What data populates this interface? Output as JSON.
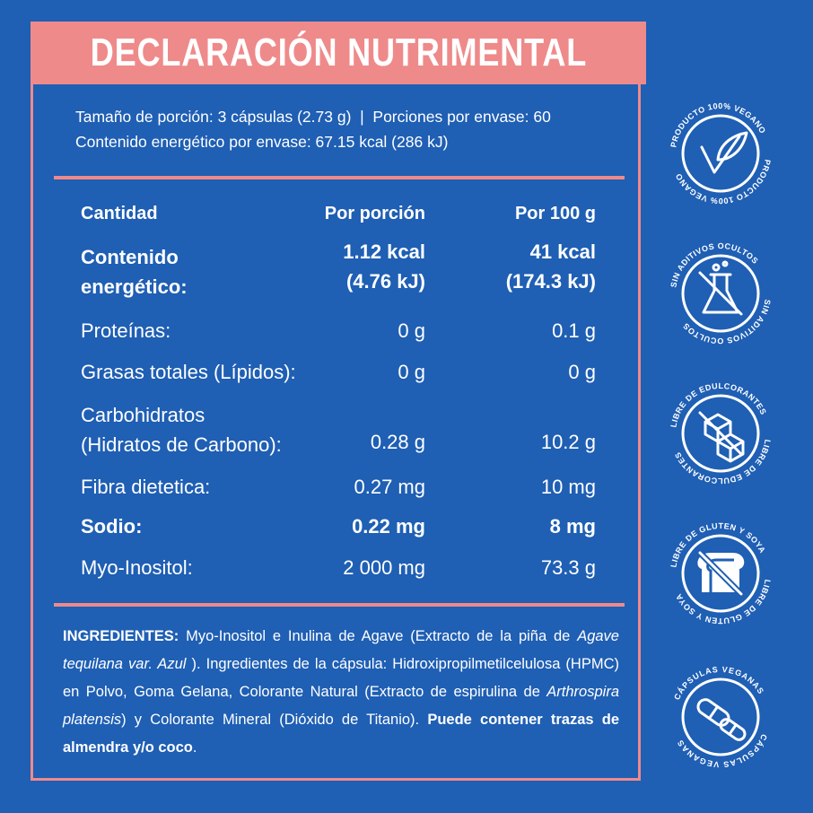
{
  "title": "DECLARACIÓN NUTRIMENTAL",
  "serving": {
    "line1": "Tamaño de porción: 3 cápsulas (2.73 g)  |  Porciones por envase: 60",
    "line2": "Contenido energético por envase: 67.15 kcal (286 kJ)"
  },
  "table": {
    "headers": [
      "Cantidad",
      "Por porción",
      "Por 100 g"
    ],
    "energy": {
      "label_1": "Contenido",
      "label_2": "energético:",
      "portion_1": "1.12 kcal",
      "portion_2": "(4.76 kJ)",
      "per100_1": "41 kcal",
      "per100_2": "(174.3 kJ)"
    },
    "rows": [
      {
        "label": "Proteínas:",
        "portion": "0 g",
        "per100": "0.1 g"
      },
      {
        "label": "Grasas totales (Lípidos):",
        "portion": "0 g",
        "per100": "0 g"
      },
      {
        "label": "Carbohidratos",
        "label_2": "(Hidratos de Carbono):",
        "portion": "0.28 g",
        "per100": "10.2 g"
      },
      {
        "label": "Fibra dietetica:",
        "portion": "0.27 mg",
        "per100": "10 mg"
      },
      {
        "label": "Sodio:",
        "portion": "0.22 mg",
        "per100": "8 mg"
      },
      {
        "label": "Myo-Inositol:",
        "portion": "2 000 mg",
        "per100": "73.3 g"
      }
    ]
  },
  "ingredients": {
    "label": "INGREDIENTES:",
    "part1": " Myo-Inositol e Inulina de Agave (Extracto de la piña de ",
    "italic1": "Agave tequilana var. Azul",
    "part2": " ). Ingredientes de la cápsula: Hidroxipropilmetilcelulosa (HPMC) en Polvo, Goma Gelana, Colorante Natural (Extracto de espirulina de ",
    "italic2": "Arthrospira platensis",
    "part3": ") y Colorante Mineral (Dióxido de Titanio). ",
    "bold_end": "Puede contener trazas de almendra y/o coco",
    "end": "."
  },
  "badges": [
    {
      "text": "PRODUCTO 100% VEGANO",
      "icon": "leaf-icon"
    },
    {
      "text": "SIN ADITIVOS OCULTOS",
      "icon": "flask-crossed-icon"
    },
    {
      "text": "LIBRE DE EDULCORANTES",
      "icon": "sugar-cubes-crossed-icon"
    },
    {
      "text": "LIBRE DE GLUTEN Y SOYA",
      "icon": "bread-crossed-icon"
    },
    {
      "text": "CÁPSULAS VEGANAS",
      "icon": "capsule-icon"
    }
  ],
  "colors": {
    "background": "#1f5fb4",
    "accent": "#ef8a8a",
    "text": "#ffffff"
  }
}
